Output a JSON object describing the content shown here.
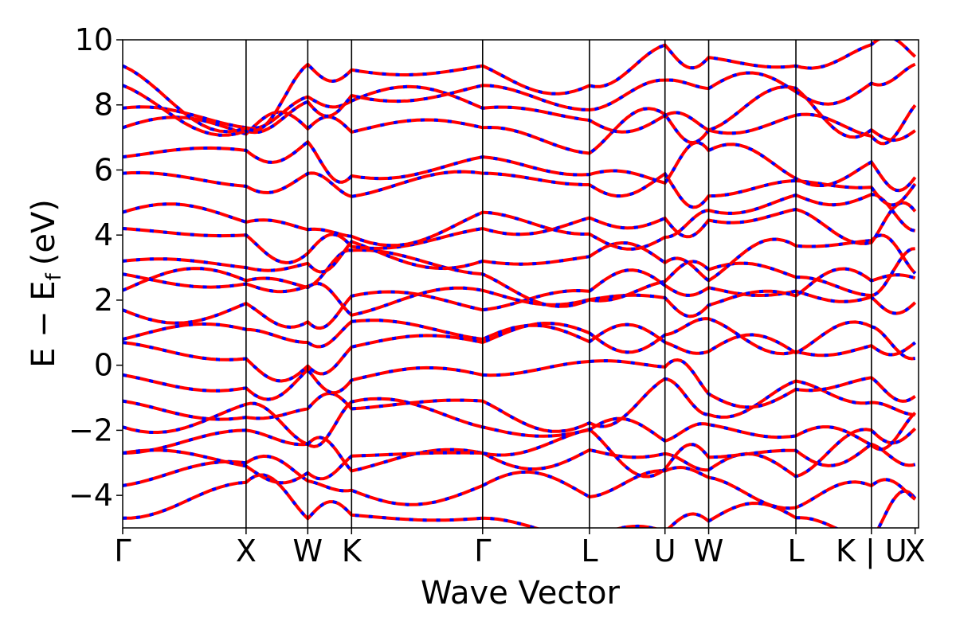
{
  "chart_data": {
    "type": "line",
    "title": "",
    "xlabel": "Wave Vector",
    "ylabel": "E − E",
    "ylabel_subscript": "f",
    "ylabel_unit": "(eV)",
    "ylim": [
      -5,
      10
    ],
    "yticks": [
      -4,
      -2,
      0,
      2,
      4,
      6,
      8,
      10
    ],
    "ytick_labels": [
      "−4",
      "−2",
      "0",
      "2",
      "4",
      "6",
      "8",
      "10"
    ],
    "xlim": [
      0,
      6.45
    ],
    "kpath": [
      {
        "label": "Γ",
        "x": 0.0
      },
      {
        "label": "X",
        "x": 1.0
      },
      {
        "label": "W",
        "x": 1.5
      },
      {
        "label": "K",
        "x": 1.855
      },
      {
        "label": "Γ",
        "x": 2.917
      },
      {
        "label": "L",
        "x": 3.783
      },
      {
        "label": "U",
        "x": 4.395
      },
      {
        "label": "W",
        "x": 4.749
      },
      {
        "label": "L",
        "x": 5.456
      },
      {
        "label": "K | U",
        "x": 6.068
      },
      {
        "label": "X",
        "x": 6.422
      }
    ],
    "grid": false,
    "series_colors": {
      "spin_up": "#0000ff",
      "spin_down": "#ff0000"
    },
    "bands_gamma_x": [
      [
        -4.7,
        -3.6
      ],
      [
        -3.7,
        -3.0
      ],
      [
        -2.7,
        -2.0
      ],
      [
        -2.7,
        -3.1
      ],
      [
        -1.9,
        -1.2
      ],
      [
        -1.1,
        -1.6
      ],
      [
        -0.3,
        -0.7
      ],
      [
        0.7,
        0.2
      ],
      [
        0.8,
        1.1
      ],
      [
        1.7,
        1.9
      ],
      [
        2.3,
        2.6
      ],
      [
        2.8,
        2.5
      ],
      [
        3.2,
        3.0
      ],
      [
        4.2,
        4.0
      ],
      [
        4.7,
        4.4
      ],
      [
        5.9,
        5.5
      ],
      [
        6.4,
        6.6
      ],
      [
        7.3,
        7.1
      ],
      [
        7.9,
        7.3
      ],
      [
        8.6,
        7.2
      ],
      [
        9.2,
        7.3
      ]
    ]
  }
}
